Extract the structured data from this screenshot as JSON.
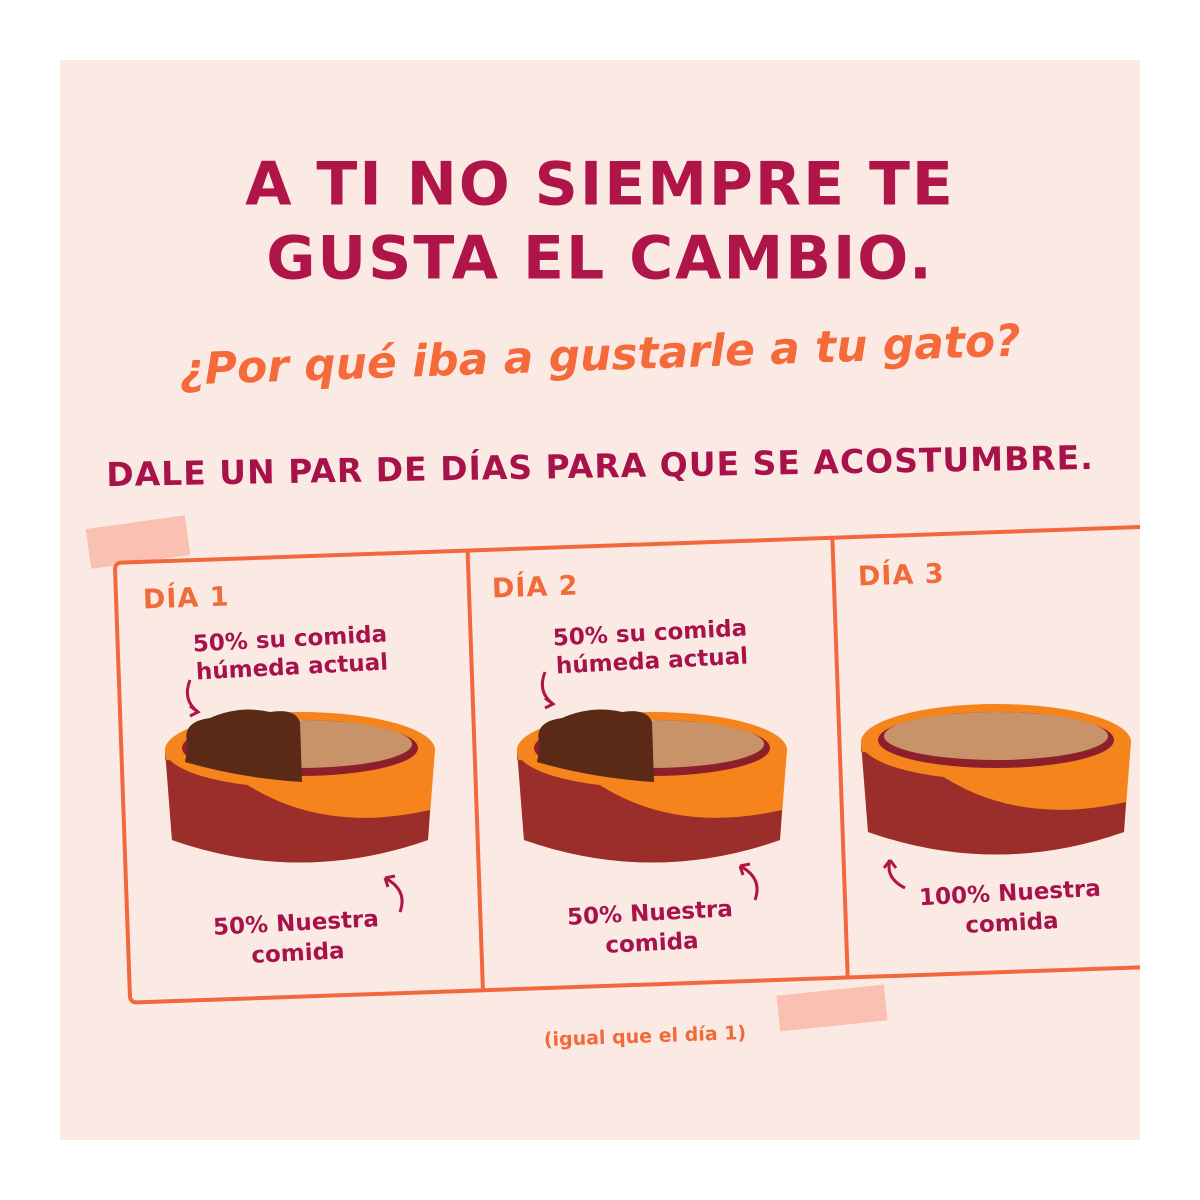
{
  "header": {
    "title_lines": [
      "A TI NO SIEMPRE TE",
      "GUSTA EL CAMBIO."
    ],
    "subtitle": "¿Por qué iba a gustarle a tu gato?",
    "instruction": "DALE UN PAR DE DÍAS PARA QUE SE ACOSTUMBRE."
  },
  "panels": [
    {
      "day": "DÍA 1",
      "top_label": [
        "50% su comida",
        "húmeda actual"
      ],
      "bottom_label": [
        "50% Nuestra",
        "comida"
      ]
    },
    {
      "day": "DÍA 2",
      "top_label": [
        "50% su comida",
        "húmeda actual"
      ],
      "bottom_label": [
        "50% Nuestra",
        "comida"
      ]
    },
    {
      "day": "DÍA 3",
      "bottom_label": [
        "100% Nuestra",
        "comida"
      ]
    }
  ],
  "note": "(igual que el día 1)"
}
